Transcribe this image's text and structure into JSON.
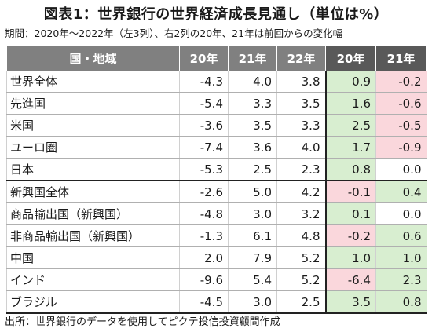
{
  "title": "図表1：世界銀行の世界経済成長見通し（単位は%）",
  "subtitle": "期間：2020年～2022年（左3列）、右2列の20年、21年は前回からの変化幅",
  "table": {
    "headers": [
      "国・地域",
      "20年",
      "21年",
      "22年",
      "20年",
      "21年"
    ],
    "rows": [
      {
        "region": "世界全体",
        "y20": "-4.3",
        "y21": "4.0",
        "y22": "3.8",
        "c20": "0.9",
        "c21": "-0.2",
        "c20_sign": "pos",
        "c21_sign": "neg"
      },
      {
        "region": "先進国",
        "y20": "-5.4",
        "y21": "3.3",
        "y22": "3.5",
        "c20": "1.6",
        "c21": "-0.6",
        "c20_sign": "pos",
        "c21_sign": "neg"
      },
      {
        "region": "米国",
        "y20": "-3.6",
        "y21": "3.5",
        "y22": "3.3",
        "c20": "2.5",
        "c21": "-0.5",
        "c20_sign": "pos",
        "c21_sign": "neg"
      },
      {
        "region": "ユーロ圏",
        "y20": "-7.4",
        "y21": "3.6",
        "y22": "4.0",
        "c20": "1.7",
        "c21": "-0.9",
        "c20_sign": "pos",
        "c21_sign": "neg"
      },
      {
        "region": "日本",
        "y20": "-5.3",
        "y21": "2.5",
        "y22": "2.3",
        "c20": "0.8",
        "c21": "0.0",
        "c20_sign": "pos",
        "c21_sign": "zero"
      },
      {
        "region": "新興国全体",
        "y20": "-2.6",
        "y21": "5.0",
        "y22": "4.2",
        "c20": "-0.1",
        "c21": "0.4",
        "c20_sign": "neg",
        "c21_sign": "pos"
      },
      {
        "region": "商品輸出国（新興国）",
        "y20": "-4.8",
        "y21": "3.0",
        "y22": "3.2",
        "c20": "0.1",
        "c21": "0.0",
        "c20_sign": "pos",
        "c21_sign": "zero"
      },
      {
        "region": "非商品輸出国（新興国）",
        "y20": "-1.3",
        "y21": "6.1",
        "y22": "4.8",
        "c20": "-0.2",
        "c21": "0.6",
        "c20_sign": "neg",
        "c21_sign": "pos"
      },
      {
        "region": "中国",
        "y20": "2.0",
        "y21": "7.9",
        "y22": "5.2",
        "c20": "1.0",
        "c21": "1.0",
        "c20_sign": "pos",
        "c21_sign": "pos"
      },
      {
        "region": "インド",
        "y20": "-9.6",
        "y21": "5.4",
        "y22": "5.2",
        "c20": "-6.4",
        "c21": "2.3",
        "c20_sign": "neg",
        "c21_sign": "pos"
      },
      {
        "region": "ブラジル",
        "y20": "-4.5",
        "y21": "3.0",
        "y22": "2.5",
        "c20": "3.5",
        "c21": "0.8",
        "c20_sign": "pos",
        "c21_sign": "pos"
      }
    ],
    "colors": {
      "positive_bg": "#d8eed0",
      "negative_bg": "#fad7dc",
      "header_bg": "#808080",
      "header_dark_bg": "#595959"
    }
  },
  "note": "出所：世界銀行のデータを使用してピクテ投信投資顧問作成"
}
